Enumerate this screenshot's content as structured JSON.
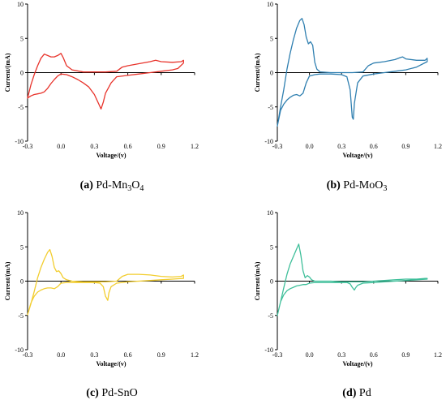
{
  "chart_data": [
    {
      "type": "line",
      "panel": "a",
      "caption": {
        "letter": "(a)",
        "label": "Pd-Mn",
        "sub1": "3",
        "mid": "O",
        "sub2": "4"
      },
      "xlabel": "Voltage/(v)",
      "ylabel": "Current/(mA)",
      "xlim": [
        -0.3,
        1.2
      ],
      "ylim": [
        -10,
        10
      ],
      "xticks": [
        "-0.3",
        "0.0",
        "0.3",
        "0.6",
        "0.9",
        "1.2"
      ],
      "yticks": [
        "-10",
        "-5",
        "0",
        "5",
        "10"
      ],
      "color": "#e8332b",
      "series": [
        {
          "x": [
            -0.3,
            -0.27,
            -0.24,
            -0.21,
            -0.18,
            -0.15,
            -0.12,
            -0.09,
            -0.06,
            -0.03,
            0.0,
            0.02,
            0.05,
            0.1,
            0.2,
            0.3,
            0.4,
            0.5,
            0.55,
            0.6,
            0.7,
            0.8,
            0.85,
            0.9,
            1.0,
            1.08,
            1.1,
            1.1,
            1.05,
            1.0,
            0.9,
            0.8,
            0.7,
            0.6,
            0.5,
            0.45,
            0.4,
            0.38,
            0.36,
            0.34,
            0.3,
            0.25,
            0.2,
            0.15,
            0.1,
            0.05,
            0.0,
            -0.03,
            -0.06,
            -0.09,
            -0.12,
            -0.15,
            -0.18,
            -0.21,
            -0.24,
            -0.27,
            -0.3
          ],
          "y": [
            -3.7,
            -1.8,
            -0.3,
            1.0,
            2.1,
            2.7,
            2.5,
            2.3,
            2.3,
            2.5,
            2.8,
            2.2,
            1.0,
            0.4,
            0.1,
            0.1,
            0.1,
            0.2,
            0.8,
            1.0,
            1.3,
            1.6,
            1.8,
            1.6,
            1.5,
            1.6,
            1.8,
            1.4,
            0.6,
            0.4,
            0.2,
            0.0,
            -0.2,
            -0.4,
            -0.6,
            -1.5,
            -3.0,
            -4.3,
            -5.3,
            -4.6,
            -3.2,
            -2.1,
            -1.5,
            -1.0,
            -0.6,
            -0.3,
            -0.2,
            -0.5,
            -1.0,
            -1.6,
            -2.3,
            -2.8,
            -3.0,
            -3.1,
            -3.2,
            -3.4,
            -3.7
          ]
        }
      ]
    },
    {
      "type": "line",
      "panel": "b",
      "caption": {
        "letter": "(b)",
        "label": "Pd-MoO",
        "sub1": "3",
        "mid": "",
        "sub2": ""
      },
      "xlabel": "Voltage/(v)",
      "ylabel": "Current/(mA)",
      "xlim": [
        -0.3,
        1.2
      ],
      "ylim": [
        -10,
        10
      ],
      "xticks": [
        "-0.3",
        "0.0",
        "0.3",
        "0.6",
        "0.9",
        "1.2"
      ],
      "yticks": [
        "-10",
        "-5",
        "0",
        "5",
        "10"
      ],
      "color": "#2f7fb0",
      "series": [
        {
          "x": [
            -0.3,
            -0.27,
            -0.24,
            -0.21,
            -0.18,
            -0.15,
            -0.12,
            -0.09,
            -0.07,
            -0.05,
            -0.03,
            -0.01,
            0.01,
            0.03,
            0.05,
            0.07,
            0.1,
            0.2,
            0.3,
            0.4,
            0.5,
            0.55,
            0.6,
            0.7,
            0.8,
            0.85,
            0.87,
            0.9,
            1.0,
            1.08,
            1.1,
            1.1,
            1.0,
            0.9,
            0.8,
            0.7,
            0.6,
            0.5,
            0.45,
            0.42,
            0.41,
            0.4,
            0.38,
            0.35,
            0.3,
            0.2,
            0.1,
            0.05,
            0.0,
            -0.03,
            -0.06,
            -0.09,
            -0.12,
            -0.15,
            -0.18,
            -0.21,
            -0.24,
            -0.27,
            -0.3
          ],
          "y": [
            -7.8,
            -5.0,
            -2.5,
            0.5,
            2.8,
            4.8,
            6.5,
            7.6,
            7.9,
            7.0,
            5.2,
            4.2,
            4.5,
            4.0,
            1.5,
            0.5,
            0.1,
            0.0,
            0.0,
            0.0,
            0.1,
            1.0,
            1.4,
            1.6,
            1.9,
            2.2,
            2.3,
            2.0,
            1.8,
            1.8,
            2.1,
            1.6,
            0.8,
            0.4,
            0.2,
            0.0,
            -0.2,
            -0.5,
            -1.5,
            -4.5,
            -6.8,
            -6.5,
            -2.5,
            -0.6,
            -0.3,
            -0.2,
            -0.2,
            -0.3,
            -0.5,
            -1.5,
            -3.0,
            -3.4,
            -3.2,
            -3.3,
            -3.6,
            -4.0,
            -4.6,
            -5.5,
            -7.8
          ]
        }
      ]
    },
    {
      "type": "line",
      "panel": "c",
      "caption": {
        "letter": "(c)",
        "label": "Pd-SnO",
        "sub1": "",
        "mid": "",
        "sub2": ""
      },
      "xlabel": "Voltage/(v)",
      "ylabel": "Current/(mA)",
      "xlim": [
        -0.3,
        1.2
      ],
      "ylim": [
        -10,
        10
      ],
      "xticks": [
        "-0.3",
        "0.0",
        "0.3",
        "0.6",
        "0.9",
        "1.2"
      ],
      "yticks": [
        "-10",
        "-5",
        "0",
        "5",
        "10"
      ],
      "color": "#f2cd2e",
      "series": [
        {
          "x": [
            -0.3,
            -0.27,
            -0.24,
            -0.21,
            -0.18,
            -0.15,
            -0.12,
            -0.1,
            -0.08,
            -0.06,
            -0.04,
            -0.02,
            0.0,
            0.02,
            0.05,
            0.1,
            0.2,
            0.3,
            0.4,
            0.5,
            0.55,
            0.6,
            0.7,
            0.8,
            0.9,
            1.0,
            1.08,
            1.1,
            1.1,
            1.0,
            0.9,
            0.8,
            0.7,
            0.6,
            0.5,
            0.45,
            0.43,
            0.42,
            0.4,
            0.38,
            0.35,
            0.3,
            0.2,
            0.1,
            0.05,
            0.0,
            -0.03,
            -0.06,
            -0.09,
            -0.12,
            -0.15,
            -0.18,
            -0.21,
            -0.24,
            -0.27,
            -0.3
          ],
          "y": [
            -4.9,
            -3.3,
            -1.5,
            0.5,
            2.0,
            3.2,
            4.2,
            4.6,
            3.6,
            2.0,
            1.4,
            1.5,
            1.1,
            0.5,
            0.2,
            0.0,
            -0.1,
            -0.1,
            -0.1,
            0.0,
            0.7,
            1.0,
            1.0,
            0.9,
            0.7,
            0.6,
            0.7,
            0.9,
            0.4,
            0.3,
            0.2,
            0.1,
            0.0,
            -0.1,
            -0.3,
            -0.8,
            -1.7,
            -2.8,
            -2.2,
            -0.8,
            -0.3,
            -0.2,
            -0.2,
            -0.2,
            -0.2,
            -0.3,
            -0.8,
            -1.1,
            -1.0,
            -1.0,
            -1.1,
            -1.3,
            -1.6,
            -2.2,
            -3.2,
            -4.9
          ]
        }
      ]
    },
    {
      "type": "line",
      "panel": "d",
      "caption": {
        "letter": "(d)",
        "label": "Pd",
        "sub1": "",
        "mid": "",
        "sub2": ""
      },
      "xlabel": "Voltage/(v)",
      "ylabel": "Current/(mA)",
      "xlim": [
        -0.3,
        1.2
      ],
      "ylim": [
        -10,
        10
      ],
      "xticks": [
        "-0.3",
        "0.0",
        "0.3",
        "0.6",
        "0.9",
        "1.2"
      ],
      "yticks": [
        "-10",
        "-5",
        "0",
        "5",
        "10"
      ],
      "color": "#3fbf9a",
      "series": [
        {
          "x": [
            -0.3,
            -0.27,
            -0.24,
            -0.21,
            -0.18,
            -0.15,
            -0.12,
            -0.1,
            -0.08,
            -0.06,
            -0.04,
            -0.02,
            0.0,
            0.02,
            0.05,
            0.1,
            0.2,
            0.3,
            0.4,
            0.5,
            0.6,
            0.7,
            0.8,
            0.9,
            1.0,
            1.08,
            1.1,
            1.1,
            1.0,
            0.9,
            0.8,
            0.7,
            0.6,
            0.5,
            0.45,
            0.43,
            0.42,
            0.4,
            0.38,
            0.35,
            0.3,
            0.2,
            0.1,
            0.05,
            0.0,
            -0.03,
            -0.06,
            -0.09,
            -0.12,
            -0.15,
            -0.18,
            -0.21,
            -0.24,
            -0.27,
            -0.3
          ],
          "y": [
            -5.0,
            -3.0,
            -1.0,
            1.0,
            2.5,
            3.6,
            4.7,
            5.4,
            3.8,
            1.5,
            0.5,
            0.8,
            0.6,
            0.2,
            0.0,
            0.0,
            0.0,
            -0.1,
            -0.1,
            -0.1,
            0.0,
            0.1,
            0.2,
            0.3,
            0.3,
            0.4,
            0.4,
            0.3,
            0.2,
            0.1,
            0.0,
            -0.1,
            -0.2,
            -0.3,
            -0.6,
            -1.0,
            -1.3,
            -0.9,
            -0.4,
            -0.2,
            -0.2,
            -0.2,
            -0.2,
            -0.2,
            -0.3,
            -0.5,
            -0.5,
            -0.6,
            -0.7,
            -0.9,
            -1.1,
            -1.4,
            -2.0,
            -3.0,
            -5.0
          ]
        }
      ]
    }
  ]
}
